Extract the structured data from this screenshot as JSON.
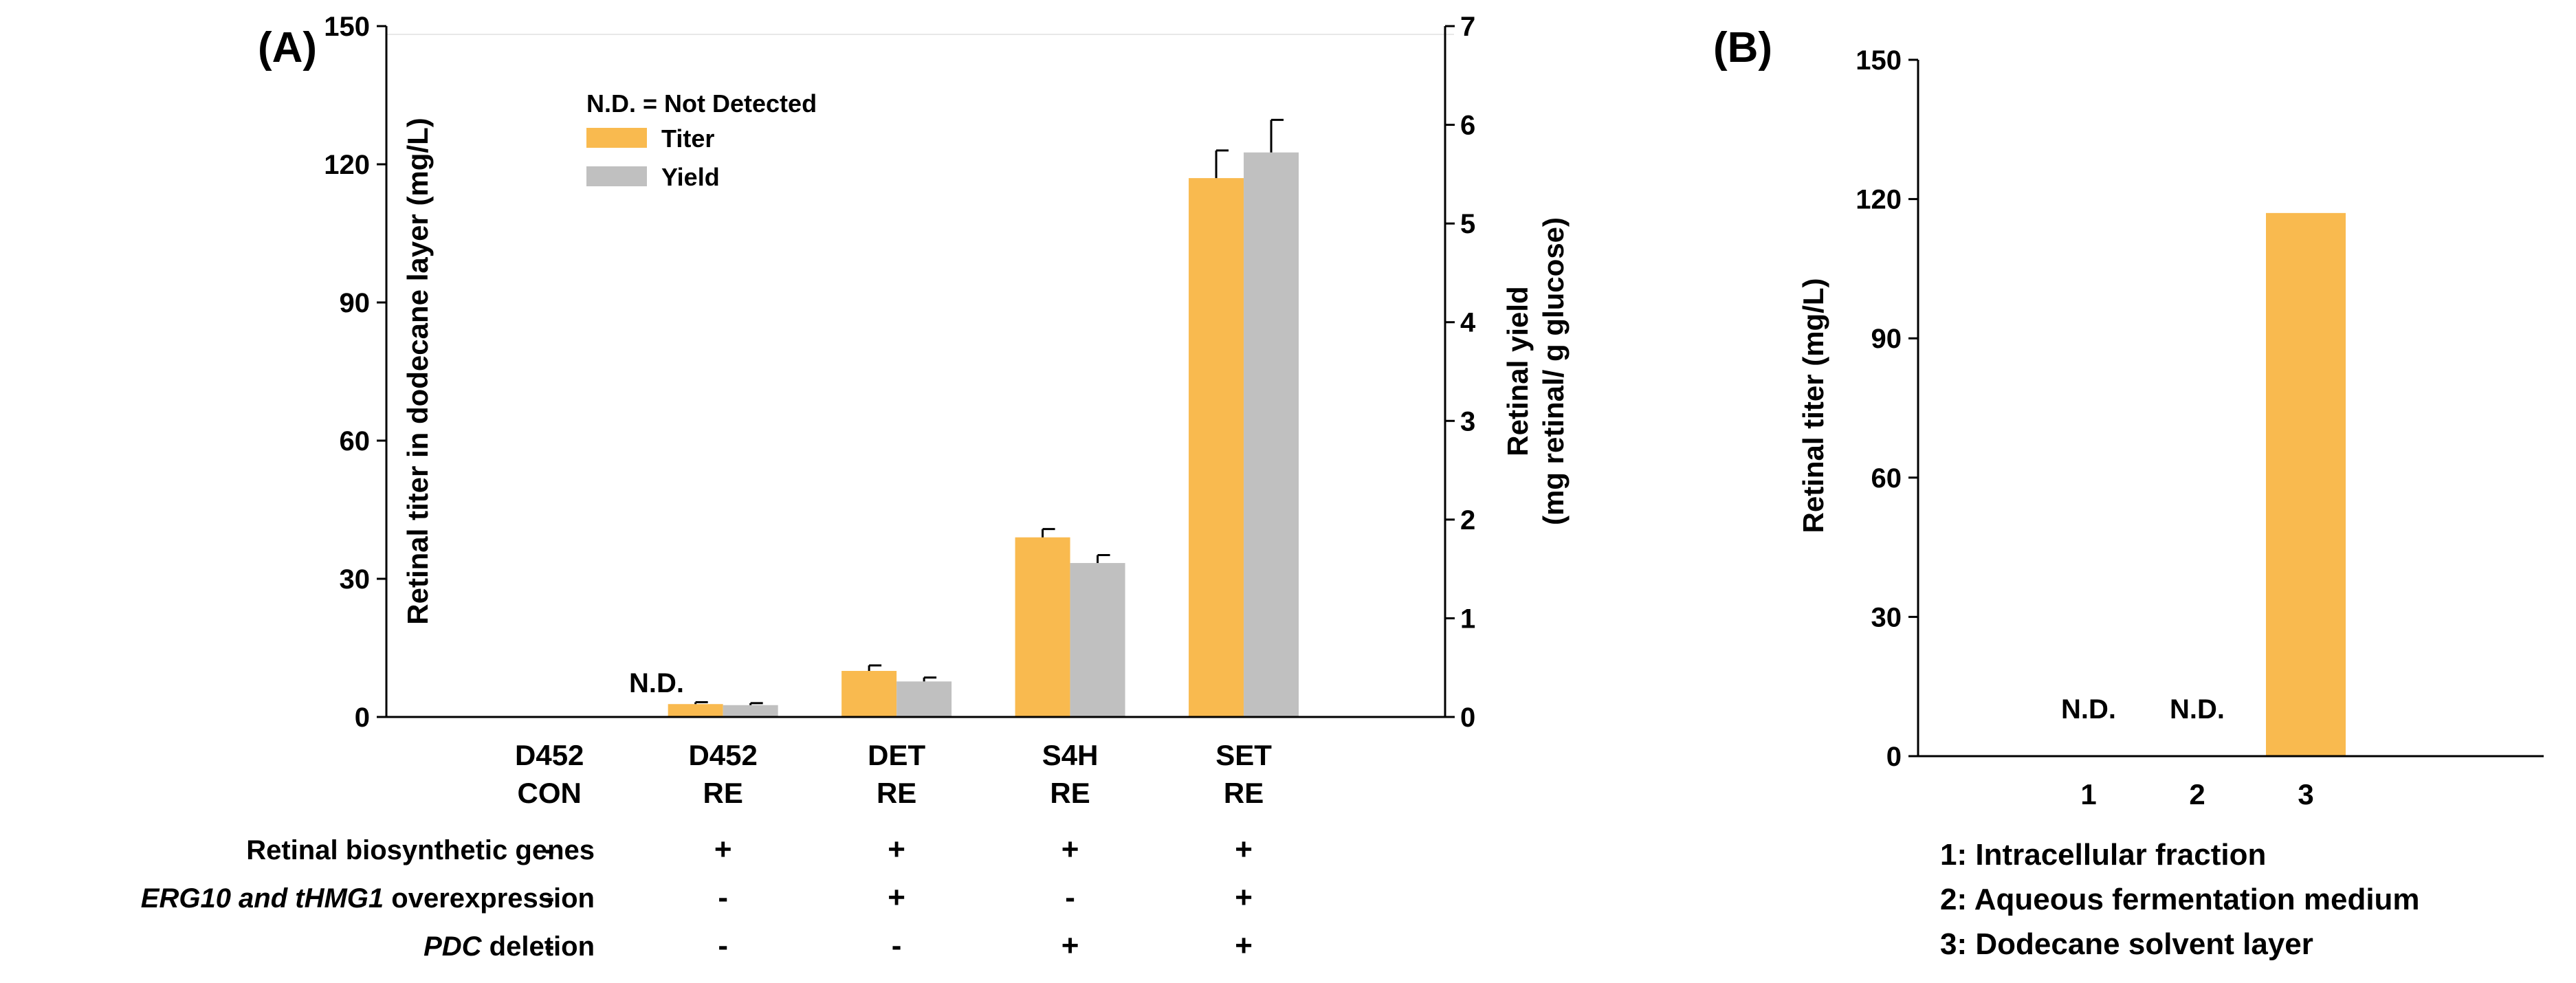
{
  "chart_data": [
    {
      "panel": "(A)",
      "type": "bar",
      "categories": [
        [
          "D452",
          "CON"
        ],
        [
          "D452",
          "RE"
        ],
        [
          "DET",
          "RE"
        ],
        [
          "S4H",
          "RE"
        ],
        [
          "SET",
          "RE"
        ]
      ],
      "series": [
        {
          "name": "Titer",
          "axis": "left",
          "color": "#F9BA4F",
          "values": [
            0,
            2.8,
            10,
            39,
            117
          ],
          "errors": [
            0,
            0.4,
            1.2,
            1.8,
            6
          ]
        },
        {
          "name": "Yield",
          "axis": "right",
          "color": "#C0C0C0",
          "values": [
            0,
            0.12,
            0.36,
            1.56,
            5.72
          ],
          "errors": [
            0,
            0.02,
            0.04,
            0.08,
            0.33
          ]
        }
      ],
      "ylabel": "Retinal titer in dodecane layer (mg/L)",
      "ylabel_right": [
        "Retinal yield",
        "(mg retinal/ g glucose)"
      ],
      "ylim": [
        0,
        150
      ],
      "yticks": [
        "0",
        "30",
        "60",
        "90",
        "120",
        "150"
      ],
      "ylim_right": [
        0,
        7
      ],
      "yticks_right": [
        "0",
        "1",
        "2",
        "3",
        "4",
        "5",
        "6",
        "7"
      ],
      "legend_note": "N.D. = Not Detected",
      "legend_placement": "top-left",
      "nd_label": "N.D.",
      "nd_categories": [
        0
      ],
      "table_rows": [
        {
          "label_parts": [
            {
              "text": "Retinal biosynthetic genes",
              "italic": false
            }
          ],
          "marks": [
            "-",
            "+",
            "+",
            "+",
            "+"
          ]
        },
        {
          "label_parts": [
            {
              "text": "ERG10 and tHMG1",
              "italic": true
            },
            {
              "text": " overexpression",
              "italic": false
            }
          ],
          "marks": [
            "-",
            "-",
            "+",
            "-",
            "+"
          ]
        },
        {
          "label_parts": [
            {
              "text": "PDC",
              "italic": true
            },
            {
              "text": " deletion",
              "italic": false
            }
          ],
          "marks": [
            "-",
            "-",
            "-",
            "+",
            "+"
          ]
        }
      ]
    },
    {
      "panel": "(B)",
      "type": "bar",
      "categories": [
        "1",
        "2",
        "3"
      ],
      "values": [
        0,
        0,
        117
      ],
      "color": "#F9BA4F",
      "ylabel": "Retinal titer (mg/L)",
      "ylim": [
        0,
        150
      ],
      "yticks": [
        "0",
        "30",
        "60",
        "90",
        "120",
        "150"
      ],
      "nd_label": "N.D.",
      "nd_categories": [
        0,
        1
      ],
      "key": [
        "1: Intracellular fraction",
        "2: Aqueous fermentation medium",
        "3: Dodecane solvent layer"
      ]
    }
  ]
}
